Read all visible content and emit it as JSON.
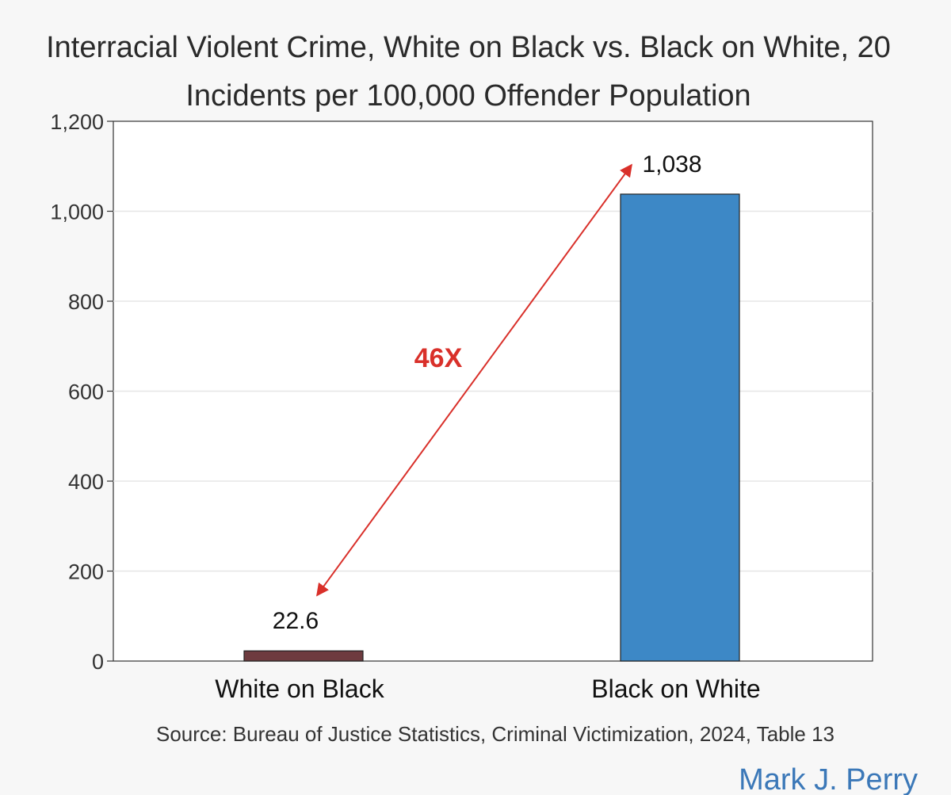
{
  "chart_data": {
    "type": "bar",
    "title": "Interracial Violent Crime, White on Black vs. Black on White, 20",
    "subtitle": "Incidents per 100,000 Offender Population",
    "categories": [
      "White on Black",
      "Black on White"
    ],
    "values": [
      22.6,
      1038
    ],
    "value_labels": [
      "22.6",
      "1,038"
    ],
    "bar_colors": [
      "#6e3b3f",
      "#3d88c6"
    ],
    "ylim": [
      0,
      1200
    ],
    "yticks": [
      0,
      200,
      400,
      600,
      800,
      1000,
      1200
    ],
    "ytick_labels": [
      "0",
      "200",
      "400",
      "600",
      "800",
      "1,000",
      "1,200"
    ],
    "grid": true,
    "xlabel": "",
    "ylabel": "",
    "annotation": {
      "text": "46X",
      "color": "#d9302a"
    },
    "source": "Source: Bureau of Justice Statistics, Criminal Victimization, 2024, Table 13",
    "credit": "Mark J. Perry",
    "credit_color": "#3b78b8"
  }
}
